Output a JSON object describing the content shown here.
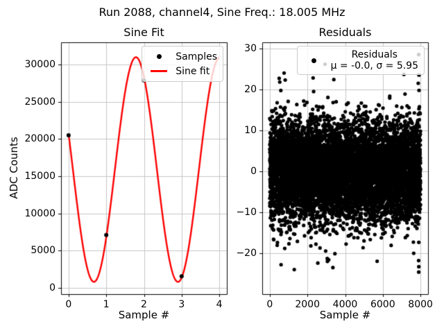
{
  "figure": {
    "suptitle": "Run 2088, channel4, Sine Freq.: 18.005 MHz",
    "background": "#ffffff"
  },
  "chart_data": [
    {
      "type": "line",
      "title": "Sine Fit",
      "xlabel": "Sample #",
      "ylabel": "ADC Counts",
      "xlim": [
        -0.2,
        4.2
      ],
      "ylim": [
        -850,
        33000
      ],
      "grid": true,
      "grid_color": "#c6c6c6",
      "legend_position": "upper right",
      "xticks": [
        {
          "value": 0,
          "label": "0"
        },
        {
          "value": 1,
          "label": "1"
        },
        {
          "value": 2,
          "label": "2"
        },
        {
          "value": 3,
          "label": "3"
        },
        {
          "value": 4,
          "label": "4"
        }
      ],
      "yticks": [
        {
          "value": 0,
          "label": "0"
        },
        {
          "value": 5000,
          "label": "5000"
        },
        {
          "value": 10000,
          "label": "10000"
        },
        {
          "value": 15000,
          "label": "15000"
        },
        {
          "value": 20000,
          "label": "20000"
        },
        {
          "value": 25000,
          "label": "25000"
        },
        {
          "value": 30000,
          "label": "30000"
        }
      ],
      "samples": {
        "label": "Samples",
        "color": "#000000",
        "x": [
          0,
          1,
          2,
          3
        ],
        "y": [
          20500,
          7100,
          27900,
          1550
        ]
      },
      "sine_fit": {
        "label": "Sine fit",
        "color": "#ff0000",
        "offset": 15900,
        "amplitude": 15100,
        "period": 2.23,
        "x_at_max": 1.787,
        "x_range": [
          0,
          4
        ]
      }
    },
    {
      "type": "scatter",
      "title": "Residuals",
      "xlabel": "Sample #",
      "ylabel": "",
      "xlim": [
        -400,
        8400
      ],
      "ylim": [
        -30,
        31.5
      ],
      "grid": true,
      "grid_color": "#c6c6c6",
      "legend_position": "upper right",
      "xticks": [
        {
          "value": 0,
          "label": "0"
        },
        {
          "value": 2000,
          "label": "2000"
        },
        {
          "value": 4000,
          "label": "4000"
        },
        {
          "value": 6000,
          "label": "6000"
        },
        {
          "value": 8000,
          "label": "8000"
        }
      ],
      "yticks": [
        {
          "value": -20,
          "label": "−20"
        },
        {
          "value": -10,
          "label": "−10"
        },
        {
          "value": 0,
          "label": "0"
        },
        {
          "value": 10,
          "label": "10"
        },
        {
          "value": 20,
          "label": "20"
        },
        {
          "value": 30,
          "label": "30"
        }
      ],
      "residuals": {
        "color": "#000000",
        "n_points": 8000,
        "mu": -0.0,
        "sigma": 5.95,
        "x_range": [
          0,
          8000
        ]
      },
      "outliers": [
        [
          500,
          22.7
        ],
        [
          530,
          21.8
        ],
        [
          760,
          24.0
        ],
        [
          820,
          22.3
        ],
        [
          2300,
          22.8
        ],
        [
          3400,
          22.4
        ],
        [
          7900,
          28.5
        ],
        [
          7920,
          23.5
        ],
        [
          7880,
          21.5
        ],
        [
          600,
          -22.8
        ],
        [
          1300,
          -24.0
        ],
        [
          2550,
          -22.4
        ],
        [
          3050,
          -21.3
        ],
        [
          3060,
          -22.0
        ],
        [
          3350,
          -23.5
        ],
        [
          7900,
          -21.8
        ],
        [
          7910,
          -23.3
        ],
        [
          7905,
          -24.6
        ]
      ],
      "legend": {
        "title": "Residuals",
        "stats": "μ = -0.0, σ = 5.95"
      }
    }
  ]
}
